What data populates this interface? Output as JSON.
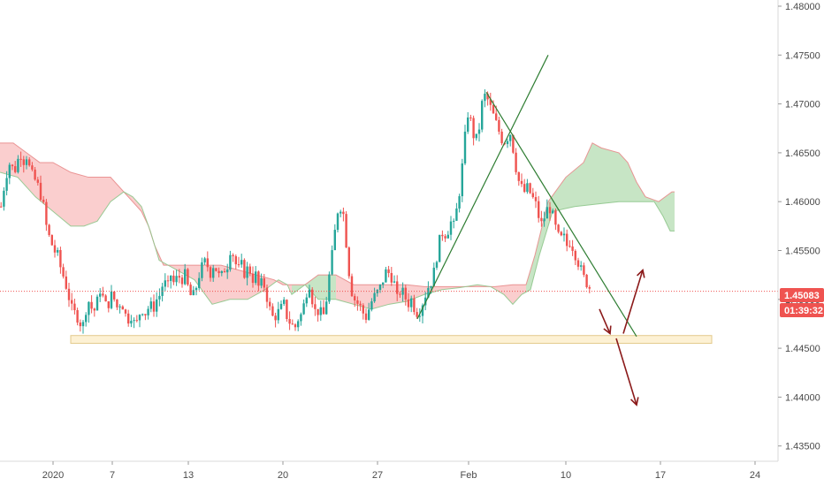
{
  "chart_data": {
    "type": "candlestick",
    "title": "",
    "xlabel": "",
    "ylabel": "",
    "ylim": [
      1.4325,
      1.4805
    ],
    "y_ticks": [
      "1.48000",
      "1.47500",
      "1.47000",
      "1.46500",
      "1.46000",
      "1.45500",
      "1.45000",
      "1.44500",
      "1.44000",
      "1.43500"
    ],
    "x_ticks": [
      "2020",
      "7",
      "13",
      "20",
      "27",
      "Feb",
      "10",
      "17",
      "24"
    ],
    "current_price": "1.45083",
    "countdown": "01:39:32",
    "support_zone": [
      1.4455,
      1.4463
    ],
    "price_path": [
      [
        0,
        1.4595
      ],
      [
        5,
        1.4625
      ],
      [
        10,
        1.464
      ],
      [
        15,
        1.463
      ],
      [
        18,
        1.464
      ],
      [
        22,
        1.465
      ],
      [
        25,
        1.464
      ],
      [
        28,
        1.465
      ],
      [
        32,
        1.4635
      ],
      [
        36,
        1.4625
      ],
      [
        40,
        1.462
      ],
      [
        44,
        1.461
      ],
      [
        48,
        1.4595
      ],
      [
        52,
        1.457
      ],
      [
        56,
        1.456
      ],
      [
        60,
        1.455
      ],
      [
        64,
        1.4545
      ],
      [
        68,
        1.453
      ],
      [
        72,
        1.452
      ],
      [
        76,
        1.4505
      ],
      [
        80,
        1.449
      ],
      [
        84,
        1.4485
      ],
      [
        88,
        1.448
      ],
      [
        92,
        1.447
      ],
      [
        96,
        1.449
      ],
      [
        100,
        1.45
      ],
      [
        104,
        1.4485
      ],
      [
        108,
        1.4495
      ],
      [
        112,
        1.451
      ],
      [
        116,
        1.45
      ],
      [
        120,
        1.449
      ],
      [
        124,
        1.4505
      ],
      [
        128,
        1.45
      ],
      [
        132,
        1.449
      ],
      [
        136,
        1.45
      ],
      [
        140,
        1.4485
      ],
      [
        144,
        1.448
      ],
      [
        148,
        1.4485
      ],
      [
        152,
        1.447
      ],
      [
        156,
        1.4485
      ],
      [
        160,
        1.449
      ],
      [
        164,
        1.4485
      ],
      [
        168,
        1.4495
      ],
      [
        172,
        1.449
      ],
      [
        176,
        1.45
      ],
      [
        180,
        1.4505
      ],
      [
        184,
        1.452
      ],
      [
        188,
        1.451
      ],
      [
        192,
        1.4525
      ],
      [
        196,
        1.4515
      ],
      [
        200,
        1.4525
      ],
      [
        204,
        1.452
      ],
      [
        208,
        1.4525
      ],
      [
        212,
        1.451
      ],
      [
        216,
        1.45
      ],
      [
        220,
        1.451
      ],
      [
        224,
        1.4525
      ],
      [
        228,
        1.4535
      ],
      [
        232,
        1.454
      ],
      [
        236,
        1.4525
      ],
      [
        240,
        1.4535
      ],
      [
        244,
        1.453
      ],
      [
        248,
        1.452
      ],
      [
        252,
        1.453
      ],
      [
        256,
        1.4535
      ],
      [
        260,
        1.4555
      ],
      [
        264,
        1.454
      ],
      [
        268,
        1.453
      ],
      [
        272,
        1.4535
      ],
      [
        276,
        1.4525
      ],
      [
        280,
        1.4535
      ],
      [
        284,
        1.452
      ],
      [
        288,
        1.4525
      ],
      [
        292,
        1.451
      ],
      [
        296,
        1.452
      ],
      [
        300,
        1.4505
      ],
      [
        304,
        1.449
      ],
      [
        308,
        1.448
      ],
      [
        312,
        1.4485
      ],
      [
        316,
        1.449
      ],
      [
        320,
        1.4495
      ],
      [
        324,
        1.448
      ],
      [
        328,
        1.4475
      ],
      [
        332,
        1.447
      ],
      [
        336,
        1.448
      ],
      [
        340,
        1.4485
      ],
      [
        344,
        1.45
      ],
      [
        348,
        1.452
      ],
      [
        352,
        1.45
      ],
      [
        356,
        1.4485
      ],
      [
        360,
        1.449
      ],
      [
        364,
        1.448
      ],
      [
        368,
        1.45
      ],
      [
        372,
        1.453
      ],
      [
        376,
        1.4555
      ],
      [
        380,
        1.459
      ],
      [
        384,
        1.4595
      ],
      [
        388,
        1.4585
      ],
      [
        392,
        1.454
      ],
      [
        396,
        1.451
      ],
      [
        400,
        1.45
      ],
      [
        404,
        1.4495
      ],
      [
        408,
        1.449
      ],
      [
        412,
        1.448
      ],
      [
        416,
        1.449
      ],
      [
        420,
        1.45
      ],
      [
        424,
        1.4505
      ],
      [
        428,
        1.451
      ],
      [
        432,
        1.452
      ],
      [
        436,
        1.453
      ],
      [
        440,
        1.4525
      ],
      [
        444,
        1.452
      ],
      [
        448,
        1.45
      ],
      [
        452,
        1.451
      ],
      [
        456,
        1.4505
      ],
      [
        460,
        1.4495
      ],
      [
        464,
        1.45
      ],
      [
        468,
        1.449
      ],
      [
        472,
        1.4485
      ],
      [
        476,
        1.4495
      ],
      [
        480,
        1.4505
      ],
      [
        484,
        1.4515
      ],
      [
        488,
        1.452
      ],
      [
        492,
        1.454
      ],
      [
        496,
        1.456
      ],
      [
        500,
        1.457
      ],
      [
        504,
        1.4565
      ],
      [
        508,
        1.458
      ],
      [
        512,
        1.4575
      ],
      [
        516,
        1.4595
      ],
      [
        520,
        1.462
      ],
      [
        524,
        1.466
      ],
      [
        528,
        1.469
      ],
      [
        532,
        1.468
      ],
      [
        536,
        1.466
      ],
      [
        540,
        1.467
      ],
      [
        544,
        1.47
      ],
      [
        548,
        1.471
      ],
      [
        552,
        1.47
      ],
      [
        556,
        1.469
      ],
      [
        560,
        1.468
      ],
      [
        564,
        1.467
      ],
      [
        568,
        1.466
      ],
      [
        572,
        1.4665
      ],
      [
        576,
        1.467
      ],
      [
        580,
        1.465
      ],
      [
        584,
        1.4625
      ],
      [
        588,
        1.4615
      ],
      [
        592,
        1.461
      ],
      [
        596,
        1.4615
      ],
      [
        600,
        1.4605
      ],
      [
        604,
        1.46
      ],
      [
        608,
        1.4585
      ],
      [
        612,
        1.4575
      ],
      [
        616,
        1.459
      ],
      [
        620,
        1.4595
      ],
      [
        624,
        1.4585
      ],
      [
        628,
        1.457
      ],
      [
        632,
        1.456
      ],
      [
        636,
        1.4565
      ],
      [
        640,
        1.4555
      ],
      [
        644,
        1.456
      ],
      [
        648,
        1.455
      ],
      [
        652,
        1.454
      ],
      [
        656,
        1.453
      ],
      [
        660,
        1.452
      ],
      [
        664,
        1.4515
      ],
      [
        668,
        1.4508
      ]
    ],
    "cloud_upper": [
      [
        0,
        1.466
      ],
      [
        15,
        1.466
      ],
      [
        30,
        1.465
      ],
      [
        45,
        1.464
      ],
      [
        60,
        1.464
      ],
      [
        80,
        1.463
      ],
      [
        100,
        1.4625
      ],
      [
        125,
        1.4625
      ],
      [
        140,
        1.461
      ],
      [
        150,
        1.46
      ],
      [
        160,
        1.459
      ],
      [
        168,
        1.4575
      ],
      [
        175,
        1.4555
      ],
      [
        185,
        1.4535
      ],
      [
        200,
        1.4535
      ],
      [
        230,
        1.4535
      ],
      [
        250,
        1.4535
      ],
      [
        270,
        1.453
      ],
      [
        290,
        1.4525
      ],
      [
        310,
        1.452
      ],
      [
        320,
        1.4515
      ],
      [
        330,
        1.4515
      ],
      [
        345,
        1.4515
      ],
      [
        360,
        1.4525
      ],
      [
        380,
        1.4525
      ],
      [
        400,
        1.4515
      ],
      [
        430,
        1.4515
      ],
      [
        460,
        1.4515
      ],
      [
        480,
        1.4513
      ],
      [
        500,
        1.4513
      ],
      [
        520,
        1.4513
      ],
      [
        540,
        1.4513
      ],
      [
        560,
        1.4513
      ],
      [
        580,
        1.4515
      ],
      [
        595,
        1.4515
      ],
      [
        605,
        1.4545
      ],
      [
        620,
        1.46
      ],
      [
        640,
        1.4625
      ],
      [
        660,
        1.464
      ],
      [
        670,
        1.466
      ],
      [
        680,
        1.4655
      ],
      [
        700,
        1.465
      ],
      [
        710,
        1.464
      ],
      [
        720,
        1.462
      ],
      [
        730,
        1.4605
      ],
      [
        745,
        1.46
      ],
      [
        760,
        1.461
      ],
      [
        763,
        1.461
      ]
    ],
    "cloud_lower": [
      [
        0,
        1.463
      ],
      [
        20,
        1.4625
      ],
      [
        40,
        1.4605
      ],
      [
        60,
        1.459
      ],
      [
        80,
        1.4575
      ],
      [
        95,
        1.4575
      ],
      [
        110,
        1.458
      ],
      [
        125,
        1.46
      ],
      [
        140,
        1.461
      ],
      [
        150,
        1.4605
      ],
      [
        160,
        1.4595
      ],
      [
        170,
        1.457
      ],
      [
        180,
        1.454
      ],
      [
        200,
        1.453
      ],
      [
        220,
        1.452
      ],
      [
        240,
        1.4495
      ],
      [
        260,
        1.45
      ],
      [
        280,
        1.45
      ],
      [
        300,
        1.451
      ],
      [
        315,
        1.452
      ],
      [
        325,
        1.4515
      ],
      [
        330,
        1.4505
      ],
      [
        345,
        1.4515
      ],
      [
        360,
        1.45
      ],
      [
        380,
        1.45
      ],
      [
        400,
        1.4495
      ],
      [
        420,
        1.449
      ],
      [
        440,
        1.4495
      ],
      [
        460,
        1.4498
      ],
      [
        480,
        1.4505
      ],
      [
        500,
        1.451
      ],
      [
        520,
        1.4512
      ],
      [
        540,
        1.4515
      ],
      [
        555,
        1.4513
      ],
      [
        570,
        1.4505
      ],
      [
        580,
        1.4495
      ],
      [
        590,
        1.4505
      ],
      [
        600,
        1.451
      ],
      [
        610,
        1.4545
      ],
      [
        625,
        1.459
      ],
      [
        650,
        1.4595
      ],
      [
        680,
        1.4598
      ],
      [
        700,
        1.46
      ],
      [
        720,
        1.46
      ],
      [
        740,
        1.46
      ],
      [
        750,
        1.4585
      ],
      [
        758,
        1.457
      ],
      [
        763,
        1.457
      ]
    ],
    "trendlines": [
      {
        "from": [
          472,
          1.448
        ],
        "to": [
          620,
          1.475
        ],
        "color": "#2e7d32"
      },
      {
        "from": [
          550,
          1.4712
        ],
        "to": [
          720,
          1.4462
        ],
        "color": "#2e7d32"
      }
    ],
    "projection_arrows": [
      {
        "from": [
          678,
          1.449
        ],
        "to": [
          690,
          1.4465
        ]
      },
      {
        "from": [
          705,
          1.4465
        ],
        "to": [
          727,
          1.453
        ]
      },
      {
        "from": [
          697,
          1.446
        ],
        "to": [
          720,
          1.4392
        ]
      }
    ],
    "colors": {
      "up": "#26a69a",
      "down": "#ef5350",
      "cloud_bull": "#b9dfb6",
      "cloud_bear": "#f9c2c2",
      "support_fill": "#fdf1d4",
      "support_stroke": "#e3c98a",
      "arrow": "#8b1a1a",
      "trend": "#2e7d32",
      "price_line": "#ef5350",
      "label_bg": "#ef5350",
      "countdown_bg": "#ef5350",
      "axis_text": "#4a4a4a"
    }
  }
}
